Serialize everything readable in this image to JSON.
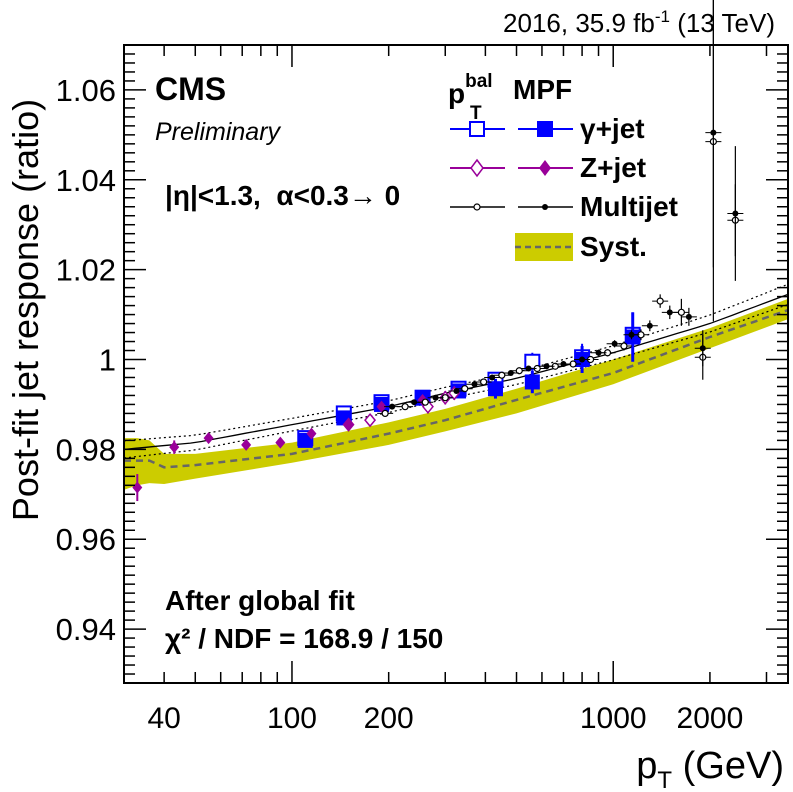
{
  "header": {
    "lumi": "2016, 35.9 fb",
    "lumi_sup": "-1",
    "energy": " (13 TeV)"
  },
  "labels": {
    "cms": "CMS",
    "preliminary": "Preliminary",
    "selection": "|η|<1.3,  α<0.3→ 0",
    "fit_title": "After global fit",
    "chi2": "χ² / NDF = 168.9 / 150"
  },
  "legend": {
    "col1_main": "p",
    "col1_sub": "T",
    "col1_sup": "bal",
    "col2": "MPF",
    "entries": [
      {
        "label": "γ+jet"
      },
      {
        "label": "Z+jet"
      },
      {
        "label": "Multijet"
      },
      {
        "label": "Syst."
      }
    ]
  },
  "colors": {
    "gamma": "#0000ff",
    "zjet": "#990099",
    "multijet": "#000000",
    "syst_band": "#cccc00",
    "syst_line": "#666666"
  },
  "chart_data": {
    "type": "scatter",
    "x_scale": "log",
    "xlim": [
      30,
      3500
    ],
    "ylim": [
      0.928,
      1.07
    ],
    "xlabel_main": "p",
    "xlabel_sub": "T",
    "xlabel_unit": " (GeV)",
    "ylabel": "Post-fit jet response (ratio)",
    "x_tick_labels": [
      {
        "value": 40,
        "label": "40"
      },
      {
        "value": 100,
        "label": "100"
      },
      {
        "value": 200,
        "label": "200"
      },
      {
        "value": 1000,
        "label": "1000"
      },
      {
        "value": 2000,
        "label": "2000"
      }
    ],
    "y_tick_labels": [
      {
        "value": 0.94,
        "label": "0.94"
      },
      {
        "value": 0.96,
        "label": "0.96"
      },
      {
        "value": 0.98,
        "label": "0.98"
      },
      {
        "value": 1.0,
        "label": "1"
      },
      {
        "value": 1.02,
        "label": "1.02"
      },
      {
        "value": 1.04,
        "label": "1.04"
      },
      {
        "value": 1.06,
        "label": "1.06"
      }
    ],
    "series": [
      {
        "key": "gamma_bal",
        "name": "γ+jet",
        "marker": "open-square",
        "x": [
          110,
          145,
          190,
          255,
          330,
          430,
          560,
          800,
          1150
        ],
        "y": [
          0.9825,
          0.988,
          0.9905,
          0.9915,
          0.9935,
          0.9955,
          0.9995,
          1.0005,
          1.0055
        ],
        "err": [
          0.0008,
          0.0008,
          0.0008,
          0.001,
          0.0012,
          0.0015,
          0.002,
          0.003,
          0.005
        ]
      },
      {
        "key": "gamma_mpf",
        "name": "γ+jet",
        "marker": "filled-square",
        "x": [
          110,
          145,
          190,
          255,
          330,
          430,
          560,
          800,
          1150
        ],
        "y": [
          0.982,
          0.987,
          0.99,
          0.9915,
          0.993,
          0.9935,
          0.995,
          1.0,
          1.005
        ],
        "err": [
          0.0008,
          0.0008,
          0.0008,
          0.001,
          0.0012,
          0.0022,
          0.0025,
          0.003,
          0.0055
        ]
      },
      {
        "key": "zjet_bal",
        "name": "Z+jet",
        "marker": "open-diamond",
        "x": [
          150,
          175,
          265,
          300,
          320
        ],
        "y": [
          0.9855,
          0.9865,
          0.9895,
          0.9915,
          0.9925
        ],
        "err": [
          0.0008,
          0.0008,
          0.0015,
          0.0015,
          0.0015
        ]
      },
      {
        "key": "zjet_mpf",
        "name": "Z+jet",
        "marker": "filled-diamond",
        "x": [
          33,
          43,
          55,
          72,
          92,
          115,
          150,
          190,
          255
        ],
        "y": [
          0.9715,
          0.9805,
          0.9825,
          0.981,
          0.9815,
          0.9835,
          0.9855,
          0.9895,
          0.991
        ],
        "err": [
          0.003,
          0.0015,
          0.001,
          0.001,
          0.0008,
          0.0008,
          0.0008,
          0.0008,
          0.001
        ]
      },
      {
        "key": "multijet_bal",
        "name": "Multijet",
        "marker": "open-circle",
        "x": [
          195,
          225,
          260,
          300,
          345,
          395,
          450,
          510,
          580,
          660,
          750,
          850,
          960,
          1080,
          1220,
          1400,
          1630,
          1900,
          2050,
          2400
        ],
        "y": [
          0.988,
          0.9895,
          0.9905,
          0.9915,
          0.9935,
          0.995,
          0.9965,
          0.9975,
          0.998,
          0.9985,
          0.999,
          1.0,
          1.0015,
          1.003,
          1.0055,
          1.013,
          1.0105,
          1.0005,
          1.0485,
          1.031
        ],
        "err": [
          0.0005,
          0.0005,
          0.0005,
          0.0005,
          0.0005,
          0.0005,
          0.0005,
          0.0005,
          0.0006,
          0.0006,
          0.0006,
          0.0007,
          0.0008,
          0.001,
          0.0012,
          0.0015,
          0.003,
          0.005,
          0.04,
          0.008
        ]
      },
      {
        "key": "multijet_mpf",
        "name": "Multijet",
        "marker": "dot",
        "x": [
          205,
          240,
          280,
          325,
          370,
          420,
          480,
          545,
          620,
          700,
          800,
          900,
          1010,
          1140,
          1300,
          1500,
          1720,
          1900,
          2050,
          2400
        ],
        "y": [
          0.9895,
          0.9905,
          0.9915,
          0.993,
          0.9945,
          0.996,
          0.997,
          0.998,
          0.9985,
          0.999,
          1.0,
          1.0015,
          1.0035,
          1.0055,
          1.0075,
          1.0105,
          1.0095,
          1.0025,
          1.0505,
          1.0325
        ],
        "err": [
          0.0005,
          0.0005,
          0.0005,
          0.0005,
          0.0005,
          0.0005,
          0.0005,
          0.0005,
          0.0006,
          0.0006,
          0.0006,
          0.0007,
          0.0008,
          0.001,
          0.0012,
          0.0015,
          0.002,
          0.004,
          0.03,
          0.015
        ]
      }
    ],
    "fit": {
      "x": [
        30,
        50,
        100,
        200,
        300,
        500,
        1000,
        2000,
        3500
      ],
      "y": [
        0.98,
        0.9815,
        0.9855,
        0.9895,
        0.9925,
        0.9958,
        1.0015,
        1.008,
        1.0145
      ],
      "band_halfwidth": 0.0013
    },
    "syst": {
      "x": [
        30,
        33,
        36,
        40,
        50,
        100,
        200,
        300,
        500,
        1000,
        2000,
        3500
      ],
      "low": [
        0.971,
        0.972,
        0.9725,
        0.9723,
        0.9735,
        0.977,
        0.981,
        0.984,
        0.988,
        0.9945,
        1.0025,
        1.009
      ],
      "high": [
        0.9825,
        0.9825,
        0.982,
        0.979,
        0.979,
        0.9815,
        0.986,
        0.989,
        0.9935,
        1.0,
        1.007,
        1.0135
      ],
      "center": [
        0.9775,
        0.9775,
        0.9775,
        0.976,
        0.9765,
        0.979,
        0.9835,
        0.9865,
        0.991,
        0.997,
        1.005,
        1.011
      ]
    }
  }
}
